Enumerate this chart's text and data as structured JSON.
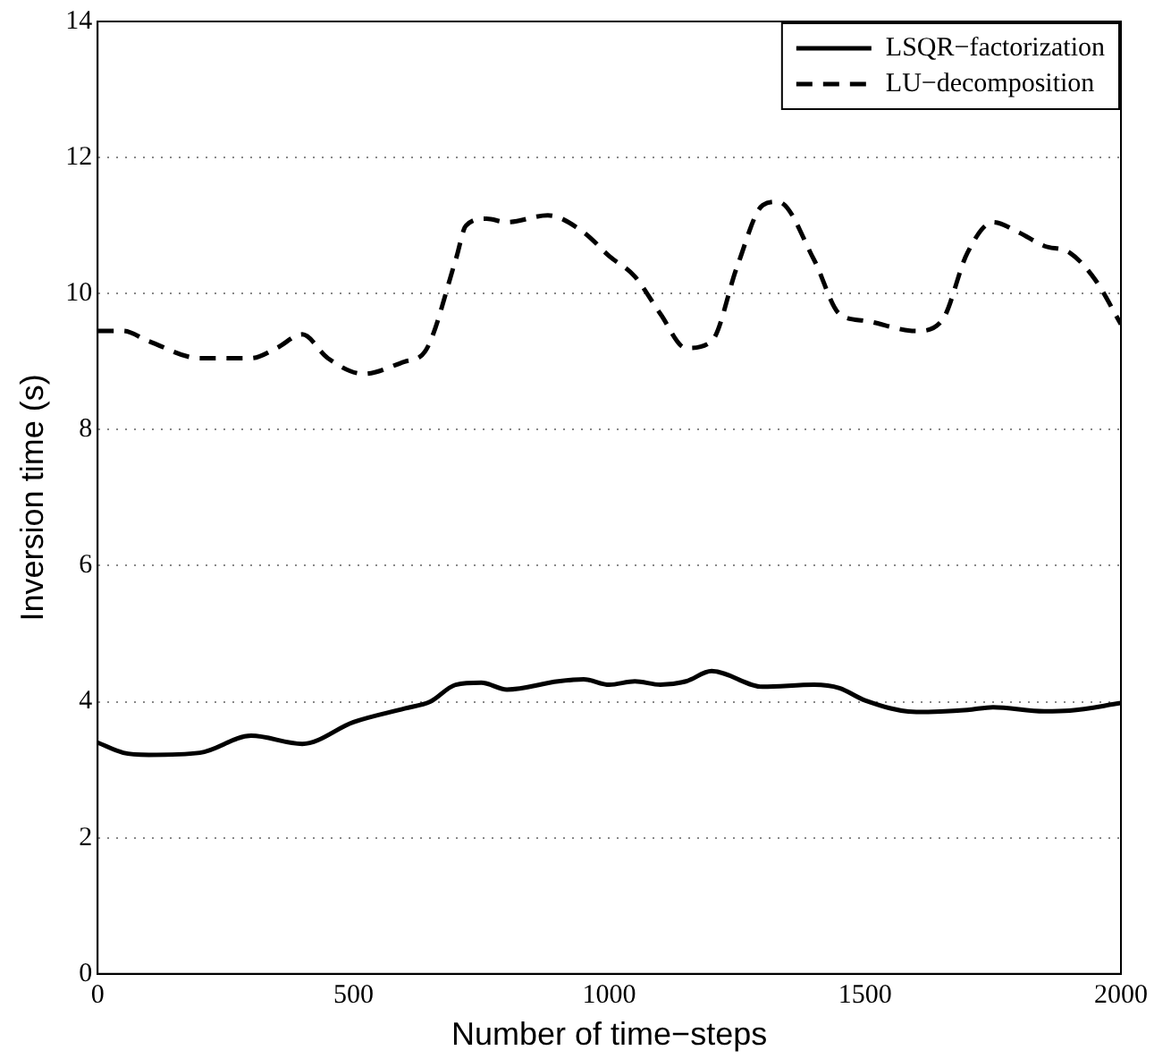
{
  "chart_data": {
    "type": "line",
    "xlabel": "Number of time−steps",
    "ylabel": "Inversion time (s)",
    "xlim": [
      0,
      2000
    ],
    "xticks": [
      0,
      500,
      1000,
      1500,
      2000
    ],
    "ylim": [
      0,
      14
    ],
    "yticks": [
      0,
      2,
      4,
      6,
      8,
      10,
      12,
      14
    ],
    "grid": "y",
    "legend": "top right",
    "marker": "none",
    "series": [
      {
        "name": "LSQR−factorization",
        "color": "#000000",
        "line_style": "solid",
        "x": [
          0,
          50,
          100,
          200,
          300,
          400,
          500,
          600,
          650,
          700,
          750,
          800,
          900,
          950,
          1000,
          1050,
          1100,
          1150,
          1200,
          1300,
          1400,
          1450,
          1500,
          1600,
          1700,
          1750,
          1850,
          1900,
          2000
        ],
        "values": [
          3.4,
          3.25,
          3.22,
          3.25,
          3.5,
          3.38,
          3.7,
          3.9,
          4.0,
          4.25,
          4.28,
          4.18,
          4.3,
          4.33,
          4.25,
          4.3,
          4.25,
          4.3,
          4.45,
          4.22,
          4.25,
          4.2,
          4.02,
          3.85,
          3.88,
          3.92,
          3.86,
          3.87,
          3.98
        ]
      },
      {
        "name": "LU−decomposition",
        "color": "#000000",
        "line_style": "dashed",
        "x": [
          0,
          50,
          100,
          200,
          300,
          350,
          400,
          450,
          520,
          600,
          640,
          700,
          720,
          760,
          800,
          880,
          950,
          1000,
          1050,
          1100,
          1150,
          1200,
          1250,
          1300,
          1330,
          1400,
          1450,
          1500,
          1600,
          1650,
          1700,
          1750,
          1800,
          1850,
          1900,
          1950,
          2000
        ],
        "values": [
          9.45,
          9.45,
          9.3,
          9.05,
          9.05,
          9.2,
          9.4,
          9.05,
          8.82,
          9.0,
          9.15,
          10.5,
          11.0,
          11.1,
          11.05,
          11.15,
          10.9,
          10.55,
          10.25,
          9.7,
          9.2,
          9.3,
          10.4,
          11.3,
          11.35,
          10.5,
          9.7,
          9.6,
          9.45,
          9.6,
          10.6,
          11.05,
          10.9,
          10.7,
          10.6,
          10.2,
          9.55
        ]
      }
    ]
  }
}
